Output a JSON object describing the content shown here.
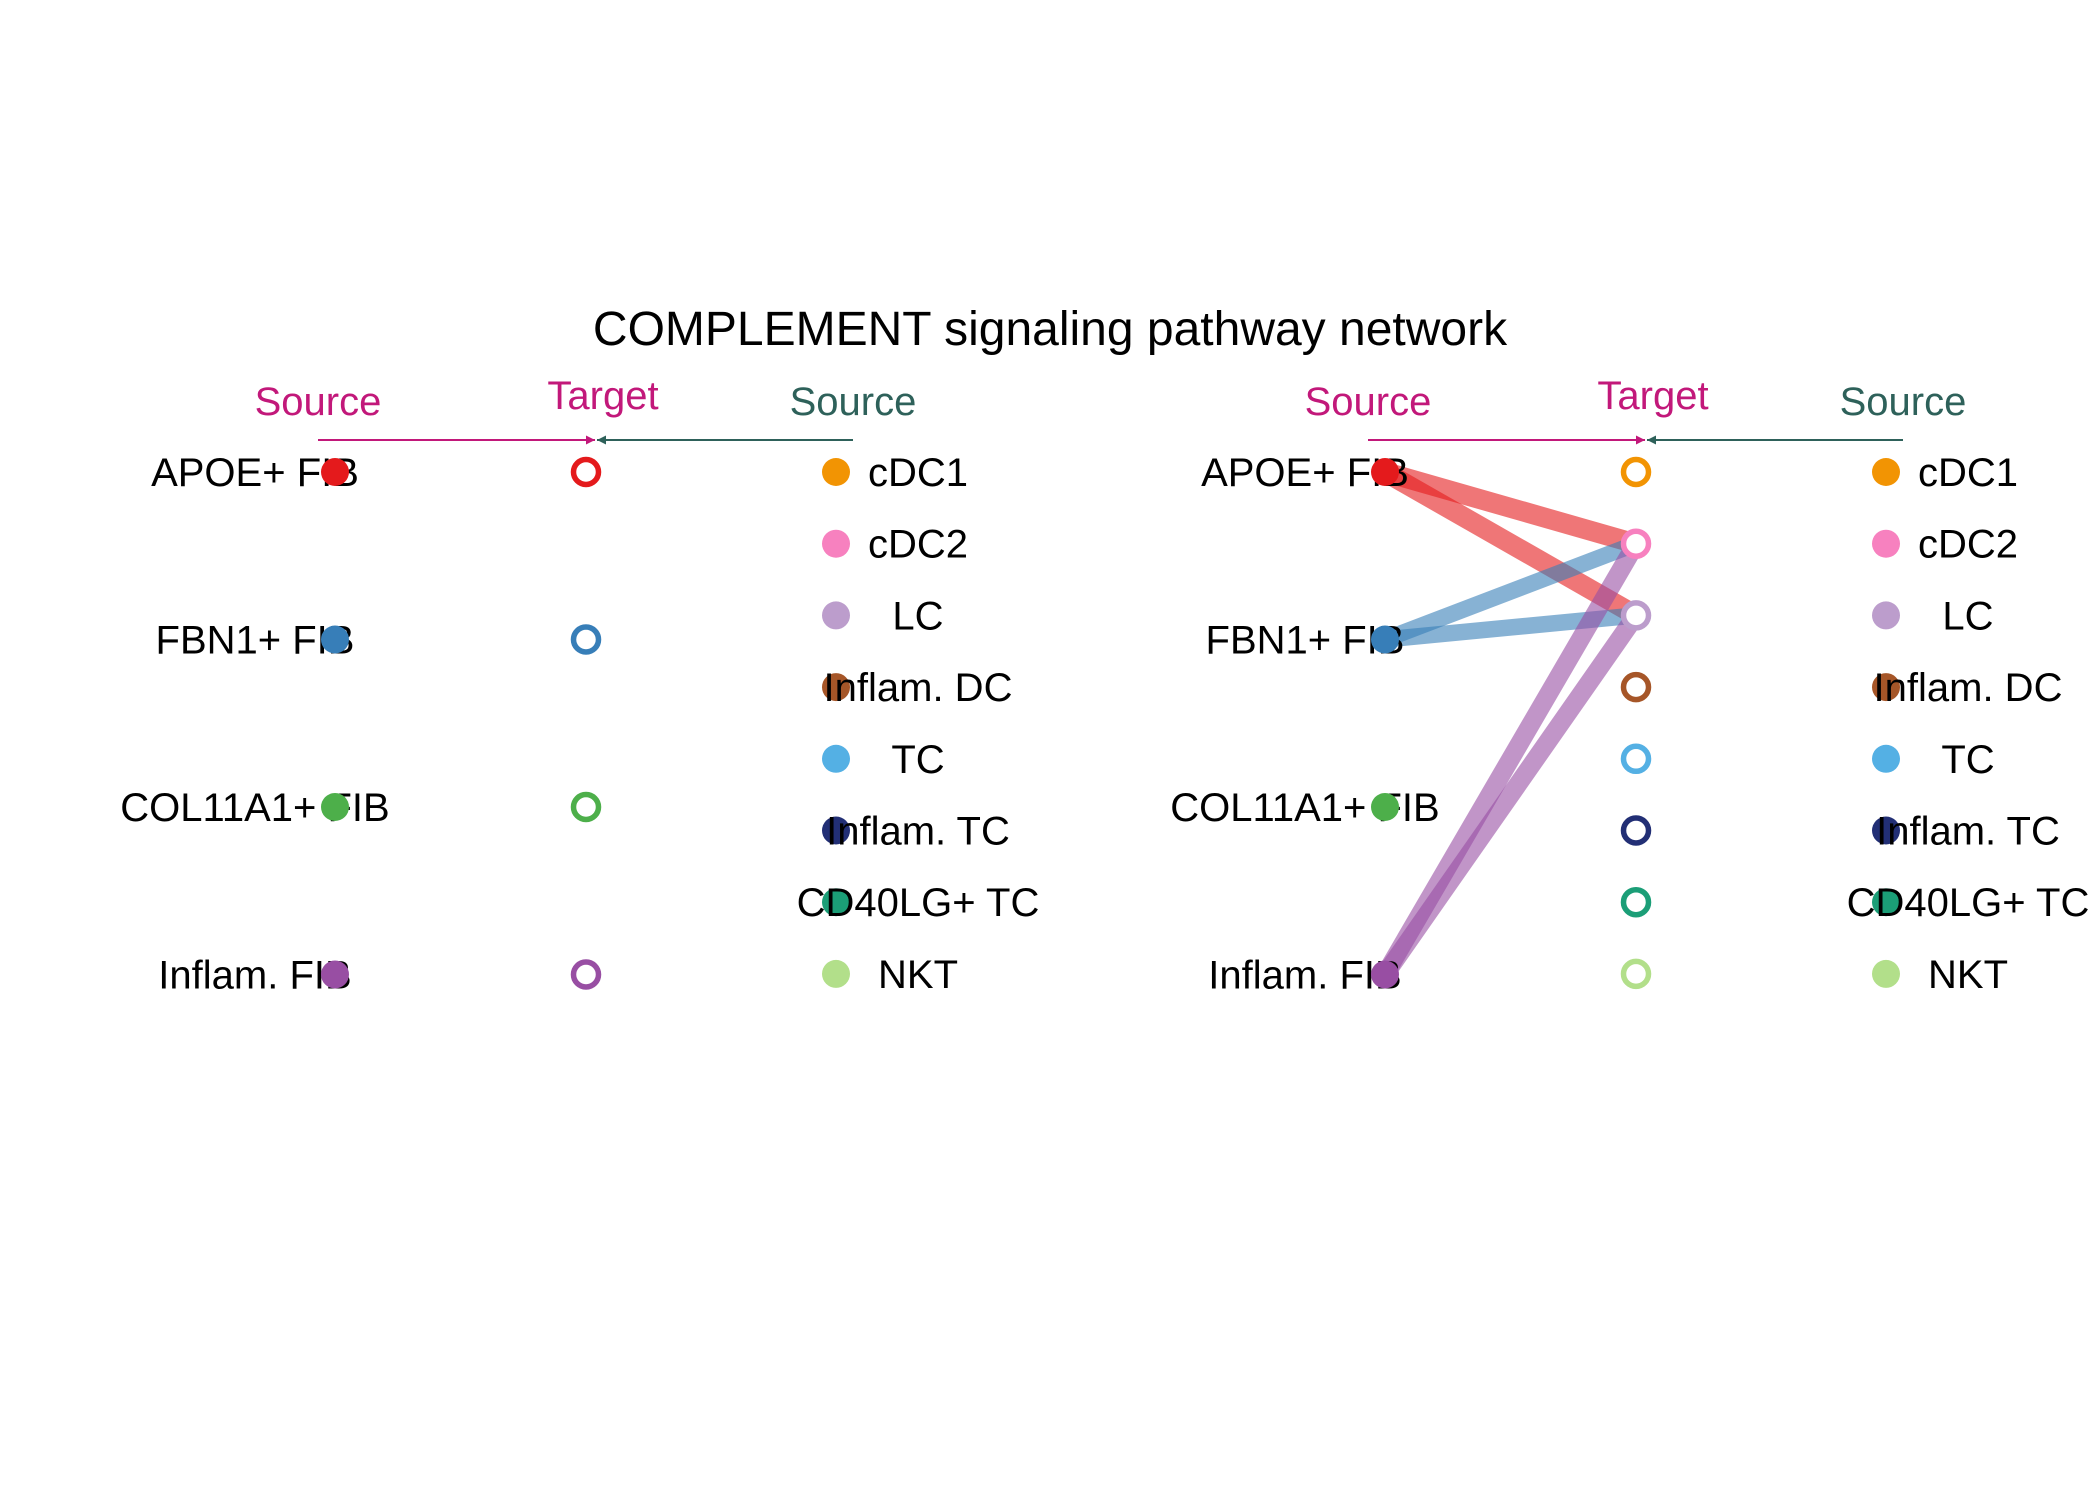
{
  "title": "COMPLEMENT signaling pathway network",
  "header": {
    "source_left": "Source",
    "target": "Target",
    "source_right": "Source",
    "color_left": "#C2187A",
    "color_right": "#2E615A"
  },
  "sources": [
    {
      "label": "APOE+ FIB",
      "color": "#E41A1C"
    },
    {
      "label": "FBN1+ FIB",
      "color": "#377EB8"
    },
    {
      "label": "COL11A1+ FIB",
      "color": "#4DAF4A"
    },
    {
      "label": "Inflam. FIB",
      "color": "#984EA3"
    }
  ],
  "receivers": [
    {
      "label": "cDC1",
      "color": "#F29403"
    },
    {
      "label": "cDC2",
      "color": "#F781BF"
    },
    {
      "label": "LC",
      "color": "#BC9DCC"
    },
    {
      "label": "Inflam. DC",
      "color": "#A65628"
    },
    {
      "label": "TC",
      "color": "#54B0E4"
    },
    {
      "label": "Inflam. TC",
      "color": "#222F75"
    },
    {
      "label": "CD40LG+ TC",
      "color": "#1B9E77"
    },
    {
      "label": "NKT",
      "color": "#B2DF8A"
    }
  ],
  "panels": [
    {
      "name": "panel-left",
      "target_kind": "sources",
      "edges": []
    },
    {
      "name": "panel-right",
      "target_kind": "receivers",
      "edges": [
        {
          "from": "APOE+ FIB",
          "to": "cDC2",
          "weight": 1.0
        },
        {
          "from": "APOE+ FIB",
          "to": "LC",
          "weight": 1.0
        },
        {
          "from": "FBN1+ FIB",
          "to": "cDC2",
          "weight": 0.75
        },
        {
          "from": "FBN1+ FIB",
          "to": "LC",
          "weight": 0.75
        },
        {
          "from": "Inflam. FIB",
          "to": "cDC2",
          "weight": 0.9
        },
        {
          "from": "Inflam. FIB",
          "to": "LC",
          "weight": 0.9
        }
      ]
    }
  ]
}
